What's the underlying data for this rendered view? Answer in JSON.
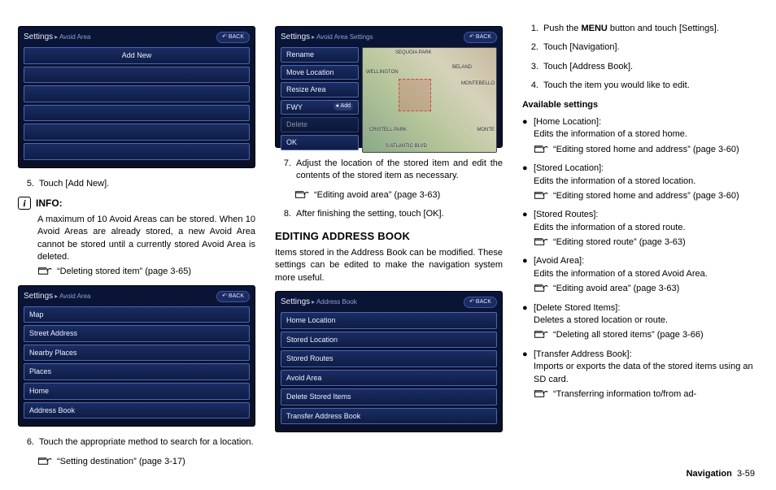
{
  "device_colors": {
    "bg_top": "#0a1436",
    "bg_bottom": "#091028",
    "row_top": "#1a2d63",
    "row_bottom": "#0f1d45",
    "row_border": "#4a66b5",
    "text": "#eaf0ff"
  },
  "shot1": {
    "title": "Settings",
    "sub": "▸ Avoid Area",
    "back": "↶ BACK",
    "rows": [
      "Add New",
      "",
      "",
      "",
      "",
      ""
    ]
  },
  "shot2": {
    "title": "Settings",
    "sub": "▸ Avoid Area",
    "back": "↶ BACK",
    "rows": [
      "Map",
      "Street Address",
      "Nearby Places",
      "Places",
      "Home",
      "Address Book"
    ]
  },
  "shot3": {
    "title": "Settings",
    "sub": "▸ Avoid Area Settings",
    "back": "↶ BACK",
    "menu": [
      "Rename",
      "Move Location",
      "Resize Area",
      "FWY",
      "Delete",
      "OK"
    ],
    "fwy_badge": "● Add",
    "map_labels": [
      "SEQUOIA PARK",
      "WELLINGTON",
      "BELAND",
      "MONTEBELLO",
      "CRISTELL PARK",
      "MONTE",
      "S ATLANTIC BLVD"
    ]
  },
  "shot4": {
    "title": "Settings",
    "sub": "▸ Address Book",
    "back": "↶ BACK",
    "rows": [
      "Home Location",
      "Stored Location",
      "Stored Routes",
      "Avoid Area",
      "Delete Stored Items",
      "Transfer Address Book"
    ]
  },
  "col1": {
    "step5": "Touch [Add New].",
    "info_label": "INFO:",
    "info_text": "A maximum of 10 Avoid Areas can be stored. When 10 Avoid Areas are already stored, a new Avoid Area cannot be stored until a currently stored Avoid Area is deleted.",
    "info_xref": "“Deleting stored item” (page 3-65)",
    "step6": "Touch the appropriate method to search for a location.",
    "step6_xref": "“Setting destination” (page 3-17)"
  },
  "col2": {
    "step7": "Adjust the location of the stored item and edit the contents of the stored item as necessary.",
    "step7_xref": "“Editing avoid area” (page 3-63)",
    "step8": "After finishing the setting, touch [OK].",
    "heading": "EDITING ADDRESS BOOK",
    "intro": "Items stored in the Address Book can be modified. These settings can be edited to make the navigation system more useful."
  },
  "col3": {
    "steps": [
      {
        "n": "1.",
        "pre": "Push the ",
        "bold": "MENU",
        "post": " button and touch [Settings]."
      },
      {
        "n": "2.",
        "text": "Touch [Navigation]."
      },
      {
        "n": "3.",
        "text": "Touch [Address Book]."
      },
      {
        "n": "4.",
        "text": "Touch the item you would like to edit."
      }
    ],
    "avail_label": "Available settings",
    "items": [
      {
        "name": "[Home Location]:",
        "desc": "Edits the information of a stored home.",
        "xref": "“Editing stored home and address” (page 3-60)"
      },
      {
        "name": "[Stored Location]:",
        "desc": "Edits the information of a stored location.",
        "xref": "“Editing stored home and address” (page 3-60)"
      },
      {
        "name": "[Stored Routes]:",
        "desc": "Edits the information of a stored route.",
        "xref": "“Editing stored route” (page 3-63)"
      },
      {
        "name": "[Avoid Area]:",
        "desc": "Edits the information of a stored Avoid Area.",
        "xref": "“Editing avoid area” (page 3-63)"
      },
      {
        "name": "[Delete Stored Items]:",
        "desc": "Deletes a stored location or route.",
        "xref": "“Deleting all stored items” (page 3-66)"
      },
      {
        "name": "[Transfer Address Book]:",
        "desc": "Imports or exports the data of the stored items using an SD card.",
        "xref": "“Transferring information to/from ad-"
      }
    ]
  },
  "footer": {
    "section": "Navigation",
    "page": "3-59"
  }
}
